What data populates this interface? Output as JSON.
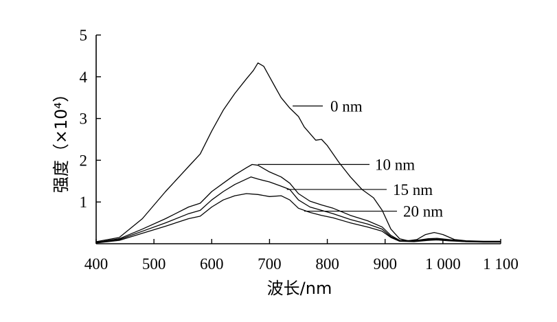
{
  "chart_data": {
    "type": "line",
    "title": "",
    "xlabel": "波长/nm",
    "ylabel": "强度（×10⁴）",
    "xlim": [
      400,
      1100
    ],
    "ylim": [
      0,
      5
    ],
    "x_ticks": [
      {
        "value": 400,
        "label": "400"
      },
      {
        "value": 500,
        "label": "500"
      },
      {
        "value": 600,
        "label": "600"
      },
      {
        "value": 700,
        "label": "700"
      },
      {
        "value": 800,
        "label": "800"
      },
      {
        "value": 900,
        "label": "900"
      },
      {
        "value": 1000,
        "label": "1 000"
      },
      {
        "value": 1100,
        "label": "1 100"
      }
    ],
    "y_ticks": [
      {
        "value": 1,
        "label": "1"
      },
      {
        "value": 2,
        "label": "2"
      },
      {
        "value": 3,
        "label": "3"
      },
      {
        "value": 4,
        "label": "4"
      },
      {
        "value": 5,
        "label": "5"
      }
    ],
    "grid": false,
    "legend": "none",
    "series": [
      {
        "name": "0 nm",
        "label_anchor": [
          740,
          3.3
        ],
        "points": [
          [
            400,
            0.05
          ],
          [
            440,
            0.15
          ],
          [
            480,
            0.6
          ],
          [
            520,
            1.25
          ],
          [
            560,
            1.85
          ],
          [
            580,
            2.15
          ],
          [
            600,
            2.7
          ],
          [
            620,
            3.2
          ],
          [
            640,
            3.6
          ],
          [
            660,
            3.95
          ],
          [
            672,
            4.15
          ],
          [
            680,
            4.33
          ],
          [
            690,
            4.25
          ],
          [
            700,
            4.0
          ],
          [
            710,
            3.75
          ],
          [
            720,
            3.5
          ],
          [
            735,
            3.25
          ],
          [
            750,
            3.05
          ],
          [
            760,
            2.8
          ],
          [
            780,
            2.48
          ],
          [
            790,
            2.5
          ],
          [
            800,
            2.35
          ],
          [
            820,
            1.95
          ],
          [
            840,
            1.6
          ],
          [
            860,
            1.3
          ],
          [
            880,
            1.1
          ],
          [
            895,
            0.8
          ],
          [
            910,
            0.35
          ],
          [
            925,
            0.12
          ],
          [
            940,
            0.07
          ],
          [
            955,
            0.1
          ],
          [
            970,
            0.22
          ],
          [
            985,
            0.27
          ],
          [
            1000,
            0.22
          ],
          [
            1020,
            0.1
          ],
          [
            1040,
            0.07
          ],
          [
            1070,
            0.06
          ],
          [
            1100,
            0.06
          ]
        ]
      },
      {
        "name": "10 nm",
        "label_anchor": [
          680,
          1.9
        ],
        "points": [
          [
            400,
            0.03
          ],
          [
            440,
            0.12
          ],
          [
            480,
            0.35
          ],
          [
            520,
            0.6
          ],
          [
            560,
            0.88
          ],
          [
            580,
            0.97
          ],
          [
            600,
            1.25
          ],
          [
            620,
            1.45
          ],
          [
            640,
            1.65
          ],
          [
            660,
            1.82
          ],
          [
            670,
            1.9
          ],
          [
            680,
            1.88
          ],
          [
            700,
            1.72
          ],
          [
            720,
            1.6
          ],
          [
            735,
            1.45
          ],
          [
            750,
            1.2
          ],
          [
            770,
            1.02
          ],
          [
            790,
            0.93
          ],
          [
            810,
            0.85
          ],
          [
            840,
            0.68
          ],
          [
            870,
            0.55
          ],
          [
            895,
            0.4
          ],
          [
            910,
            0.2
          ],
          [
            925,
            0.08
          ],
          [
            950,
            0.07
          ],
          [
            975,
            0.12
          ],
          [
            990,
            0.13
          ],
          [
            1010,
            0.1
          ],
          [
            1040,
            0.06
          ],
          [
            1070,
            0.05
          ],
          [
            1100,
            0.05
          ]
        ]
      },
      {
        "name": "15 nm",
        "label_anchor": [
          730,
          1.3
        ],
        "points": [
          [
            400,
            0.03
          ],
          [
            440,
            0.1
          ],
          [
            480,
            0.3
          ],
          [
            520,
            0.5
          ],
          [
            560,
            0.72
          ],
          [
            580,
            0.8
          ],
          [
            600,
            1.05
          ],
          [
            620,
            1.25
          ],
          [
            640,
            1.42
          ],
          [
            660,
            1.55
          ],
          [
            668,
            1.6
          ],
          [
            680,
            1.55
          ],
          [
            700,
            1.48
          ],
          [
            720,
            1.38
          ],
          [
            735,
            1.3
          ],
          [
            750,
            1.05
          ],
          [
            770,
            0.88
          ],
          [
            790,
            0.8
          ],
          [
            810,
            0.72
          ],
          [
            840,
            0.58
          ],
          [
            870,
            0.47
          ],
          [
            895,
            0.35
          ],
          [
            910,
            0.17
          ],
          [
            925,
            0.07
          ],
          [
            950,
            0.06
          ],
          [
            975,
            0.1
          ],
          [
            990,
            0.11
          ],
          [
            1010,
            0.08
          ],
          [
            1040,
            0.05
          ],
          [
            1070,
            0.05
          ],
          [
            1100,
            0.05
          ]
        ]
      },
      {
        "name": "20 nm",
        "label_anchor": [
          760,
          0.78
        ],
        "points": [
          [
            400,
            0.02
          ],
          [
            440,
            0.08
          ],
          [
            480,
            0.25
          ],
          [
            520,
            0.42
          ],
          [
            560,
            0.6
          ],
          [
            580,
            0.66
          ],
          [
            600,
            0.88
          ],
          [
            620,
            1.05
          ],
          [
            640,
            1.15
          ],
          [
            660,
            1.2
          ],
          [
            680,
            1.18
          ],
          [
            700,
            1.13
          ],
          [
            720,
            1.15
          ],
          [
            735,
            1.05
          ],
          [
            750,
            0.85
          ],
          [
            770,
            0.75
          ],
          [
            790,
            0.68
          ],
          [
            810,
            0.62
          ],
          [
            840,
            0.5
          ],
          [
            870,
            0.4
          ],
          [
            895,
            0.3
          ],
          [
            910,
            0.15
          ],
          [
            925,
            0.06
          ],
          [
            950,
            0.05
          ],
          [
            975,
            0.08
          ],
          [
            990,
            0.09
          ],
          [
            1010,
            0.07
          ],
          [
            1040,
            0.05
          ],
          [
            1070,
            0.04
          ],
          [
            1100,
            0.04
          ]
        ]
      }
    ]
  }
}
